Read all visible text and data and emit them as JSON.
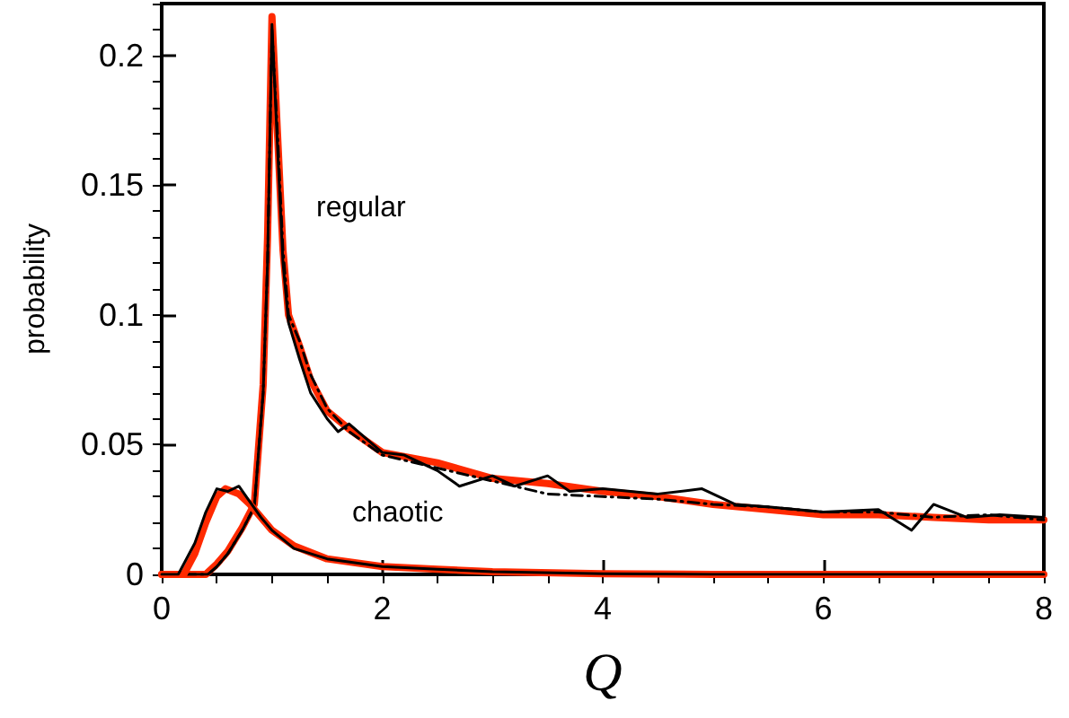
{
  "chart_data": {
    "type": "line",
    "xlabel": "Q",
    "ylabel": "probability",
    "xlim": [
      0,
      8
    ],
    "xticks": [
      0,
      2,
      4,
      6,
      8
    ],
    "ylim": [
      0,
      0.22
    ],
    "yticks": [
      0,
      0.05,
      0.1,
      0.15,
      0.2
    ],
    "grid": false,
    "marker": "none",
    "annotations": [
      "regular",
      "chaotic"
    ],
    "series": [
      {
        "color": "#ff2a00",
        "line_style": "solid",
        "x": [
          0,
          0.4,
          0.5,
          0.6,
          0.73,
          0.84,
          0.92,
          0.96,
          1.0,
          1.05,
          1.1,
          1.15,
          1.25,
          1.35,
          1.5,
          1.7,
          2.0,
          2.5,
          3.0,
          3.5,
          4.0,
          4.5,
          5.0,
          5.5,
          6.0,
          6.5,
          7.0,
          7.5,
          8.0
        ],
        "values": [
          0,
          0,
          0.004,
          0.009,
          0.018,
          0.027,
          0.073,
          0.13,
          0.215,
          0.17,
          0.125,
          0.1,
          0.088,
          0.075,
          0.063,
          0.056,
          0.047,
          0.043,
          0.037,
          0.035,
          0.032,
          0.03,
          0.027,
          0.025,
          0.023,
          0.023,
          0.022,
          0.021,
          0.021
        ]
      },
      {
        "color": "#000000",
        "line_style": "solid",
        "x": [
          0,
          0.42,
          0.5,
          0.6,
          0.73,
          0.84,
          0.92,
          0.96,
          1.0,
          1.05,
          1.1,
          1.15,
          1.25,
          1.35,
          1.5,
          1.6,
          1.7,
          2.0,
          2.2,
          2.5,
          2.7,
          3.0,
          3.2,
          3.5,
          3.7,
          4.0,
          4.5,
          4.9,
          5.2,
          5.5,
          6.0,
          6.5,
          6.8,
          7.0,
          7.3,
          7.6,
          8.0
        ],
        "values": [
          0,
          0,
          0.003,
          0.008,
          0.017,
          0.026,
          0.07,
          0.12,
          0.212,
          0.165,
          0.12,
          0.097,
          0.083,
          0.07,
          0.06,
          0.055,
          0.058,
          0.047,
          0.046,
          0.04,
          0.034,
          0.038,
          0.034,
          0.038,
          0.032,
          0.033,
          0.031,
          0.033,
          0.027,
          0.026,
          0.024,
          0.025,
          0.017,
          0.027,
          0.022,
          0.023,
          0.022
        ]
      },
      {
        "color": "#000000",
        "line_style": "dashed",
        "x": [
          0,
          0.42,
          0.5,
          0.6,
          0.73,
          0.84,
          0.92,
          0.96,
          1.0,
          1.05,
          1.1,
          1.15,
          1.25,
          1.35,
          1.5,
          1.7,
          2.0,
          2.5,
          3.0,
          3.5,
          4.0,
          4.5,
          5.0,
          5.5,
          6.0,
          6.5,
          7.0,
          7.5,
          8.0
        ],
        "values": [
          0,
          0,
          0.003,
          0.008,
          0.017,
          0.026,
          0.07,
          0.12,
          0.21,
          0.17,
          0.125,
          0.1,
          0.09,
          0.077,
          0.064,
          0.055,
          0.046,
          0.041,
          0.036,
          0.031,
          0.03,
          0.029,
          0.027,
          0.026,
          0.024,
          0.024,
          0.022,
          0.023,
          0.021
        ]
      },
      {
        "color": "#ff2a00",
        "line_style": "solid",
        "x": [
          0,
          0.2,
          0.3,
          0.4,
          0.5,
          0.58,
          0.7,
          0.8,
          0.9,
          1.0,
          1.2,
          1.5,
          2.0,
          2.5,
          3.0,
          4.0,
          5.0,
          8.0
        ],
        "values": [
          0,
          0,
          0.008,
          0.02,
          0.03,
          0.033,
          0.031,
          0.027,
          0.022,
          0.017,
          0.011,
          0.006,
          0.003,
          0.002,
          0.001,
          0.0003,
          0,
          0
        ]
      },
      {
        "color": "#000000",
        "line_style": "solid",
        "x": [
          0,
          0.15,
          0.3,
          0.4,
          0.5,
          0.6,
          0.7,
          0.8,
          0.9,
          1.0,
          1.2,
          1.5,
          2.0,
          2.5,
          3.0,
          4.0,
          5.0,
          8.0
        ],
        "values": [
          0,
          0,
          0.012,
          0.024,
          0.033,
          0.032,
          0.034,
          0.028,
          0.022,
          0.017,
          0.01,
          0.006,
          0.003,
          0.002,
          0.001,
          0.0003,
          0,
          0
        ]
      }
    ]
  }
}
